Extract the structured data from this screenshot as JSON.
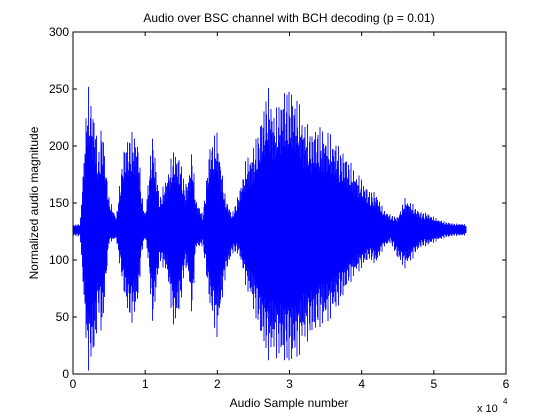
{
  "chart_data": {
    "type": "line",
    "title": "Audio over BSC channel with BCH decoding (p = 0.01)",
    "xlabel": "Audio Sample number",
    "ylabel": "Normalized audio magnitude",
    "xlim": [
      0,
      60000
    ],
    "ylim": [
      0,
      300
    ],
    "x_ticks": [
      0,
      10000,
      20000,
      30000,
      40000,
      50000,
      60000
    ],
    "x_tick_labels": [
      "0",
      "1",
      "2",
      "3",
      "4",
      "5",
      "6"
    ],
    "x_multiplier": {
      "base": "x 10",
      "exponent": "4"
    },
    "y_ticks": [
      0,
      50,
      100,
      150,
      200,
      250,
      300
    ],
    "y_tick_labels": [
      "0",
      "50",
      "100",
      "150",
      "200",
      "250",
      "300"
    ],
    "grid": false,
    "series": [
      {
        "color": "#0000ff",
        "x": [
          0,
          1000,
          2000,
          2500,
          3000,
          3500,
          4000,
          5000,
          6000,
          7000,
          8000,
          9000,
          9500,
          10000,
          10500,
          11000,
          12000,
          13000,
          14000,
          15000,
          15500,
          16000,
          16500,
          17000,
          18000,
          19000,
          20000,
          21000,
          22000,
          23000,
          24000,
          25000,
          26000,
          27000,
          28000,
          29000,
          30000,
          31000,
          32000,
          33000,
          34000,
          35000,
          36000,
          37000,
          38000,
          39000,
          40000,
          41000,
          42000,
          43000,
          44000,
          45000,
          46000,
          47000,
          48000,
          49000,
          50000,
          51000,
          52000,
          53000,
          54000,
          54500
        ],
        "upper": [
          131,
          132,
          255,
          245,
          230,
          195,
          225,
          155,
          138,
          200,
          215,
          210,
          160,
          140,
          175,
          215,
          155,
          175,
          200,
          188,
          165,
          175,
          200,
          155,
          140,
          205,
          215,
          160,
          140,
          160,
          190,
          200,
          225,
          255,
          230,
          250,
          255,
          245,
          225,
          215,
          220,
          215,
          210,
          200,
          192,
          180,
          172,
          162,
          160,
          145,
          140,
          138,
          155,
          150,
          143,
          142,
          138,
          135,
          133,
          132,
          132,
          131
        ],
        "lower": [
          121,
          120,
          2,
          5,
          12,
          52,
          28,
          115,
          118,
          70,
          40,
          58,
          105,
          120,
          95,
          38,
          98,
          88,
          35,
          60,
          95,
          85,
          45,
          110,
          112,
          55,
          28,
          80,
          105,
          105,
          75,
          55,
          30,
          10,
          15,
          8,
          5,
          10,
          25,
          30,
          38,
          42,
          50,
          60,
          75,
          85,
          92,
          100,
          95,
          110,
          115,
          100,
          92,
          100,
          110,
          112,
          115,
          118,
          120,
          121,
          121,
          122
        ]
      }
    ]
  }
}
